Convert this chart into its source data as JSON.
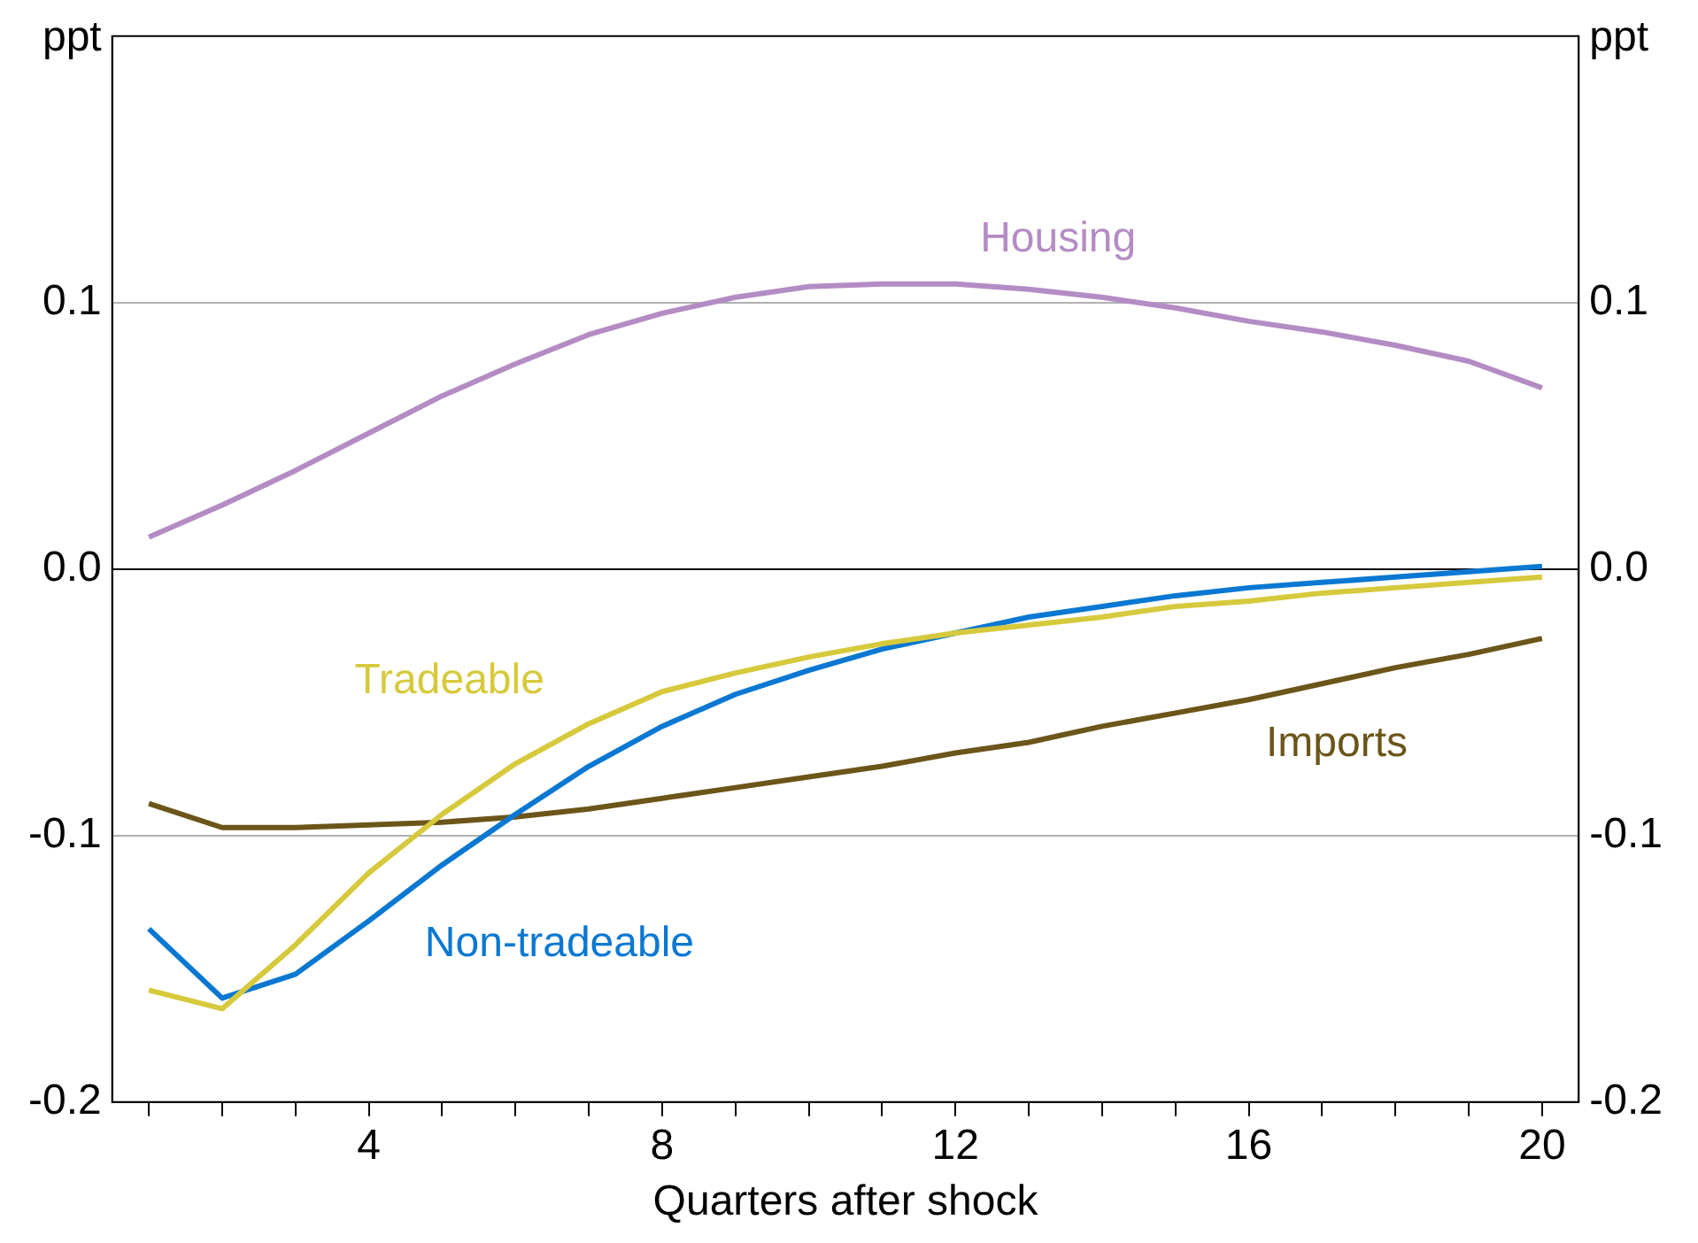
{
  "chart_data": {
    "type": "line",
    "xlabel": "Quarters after shock",
    "ylabel": "ppt",
    "y2label": "ppt",
    "x": [
      1,
      2,
      3,
      4,
      5,
      6,
      7,
      8,
      9,
      10,
      11,
      12,
      13,
      14,
      15,
      16,
      17,
      18,
      19,
      20
    ],
    "series": [
      {
        "name": "Housing",
        "color": "#b48cc4",
        "values": [
          0.012,
          0.024,
          0.037,
          0.051,
          0.065,
          0.077,
          0.088,
          0.096,
          0.102,
          0.106,
          0.107,
          0.107,
          0.105,
          0.102,
          0.098,
          0.093,
          0.089,
          0.084,
          0.078,
          0.068
        ]
      },
      {
        "name": "Tradeable",
        "color": "#d6c93c",
        "values": [
          -0.158,
          -0.165,
          -0.141,
          -0.114,
          -0.092,
          -0.073,
          -0.058,
          -0.046,
          -0.039,
          -0.033,
          -0.028,
          -0.024,
          -0.021,
          -0.018,
          -0.014,
          -0.012,
          -0.009,
          -0.007,
          -0.005,
          -0.003
        ]
      },
      {
        "name": "Non-tradeable",
        "color": "#0a78d2",
        "values": [
          -0.135,
          -0.161,
          -0.152,
          -0.132,
          -0.111,
          -0.092,
          -0.074,
          -0.059,
          -0.047,
          -0.038,
          -0.03,
          -0.024,
          -0.018,
          -0.014,
          -0.01,
          -0.007,
          -0.005,
          -0.003,
          -0.001,
          0.001
        ]
      },
      {
        "name": "Imports",
        "color": "#6b5519",
        "values": [
          -0.088,
          -0.097,
          -0.097,
          -0.096,
          -0.095,
          -0.093,
          -0.09,
          -0.086,
          -0.082,
          -0.078,
          -0.074,
          -0.069,
          -0.065,
          -0.059,
          -0.054,
          -0.049,
          -0.043,
          -0.037,
          -0.032,
          -0.026
        ]
      }
    ],
    "xlim": [
      0.5,
      20.5
    ],
    "xticks": [
      {
        "value": 1,
        "label": null
      },
      {
        "value": 2,
        "label": null
      },
      {
        "value": 3,
        "label": null
      },
      4,
      {
        "value": 5,
        "label": null
      },
      {
        "value": 6,
        "label": null
      },
      {
        "value": 7,
        "label": null
      },
      8,
      {
        "value": 9,
        "label": null
      },
      {
        "value": 10,
        "label": null
      },
      {
        "value": 11,
        "label": null
      },
      12,
      {
        "value": 13,
        "label": null
      },
      {
        "value": 14,
        "label": null
      },
      {
        "value": 15,
        "label": null
      },
      16,
      {
        "value": 17,
        "label": null
      },
      {
        "value": 18,
        "label": null
      },
      {
        "value": 19,
        "label": null
      },
      20
    ],
    "ylim": [
      -0.2,
      0.2
    ],
    "yticks": [
      -0.2,
      -0.1,
      {
        "value": 0,
        "label": "0.0"
      },
      0.1
    ],
    "y2lim": [
      -0.2,
      0.2
    ],
    "y2ticks": [
      -0.2,
      -0.1,
      {
        "value": 0,
        "label": "0.0"
      },
      0.1
    ],
    "grid": "y",
    "legend": false,
    "marker": "none",
    "line_style": "solid"
  }
}
